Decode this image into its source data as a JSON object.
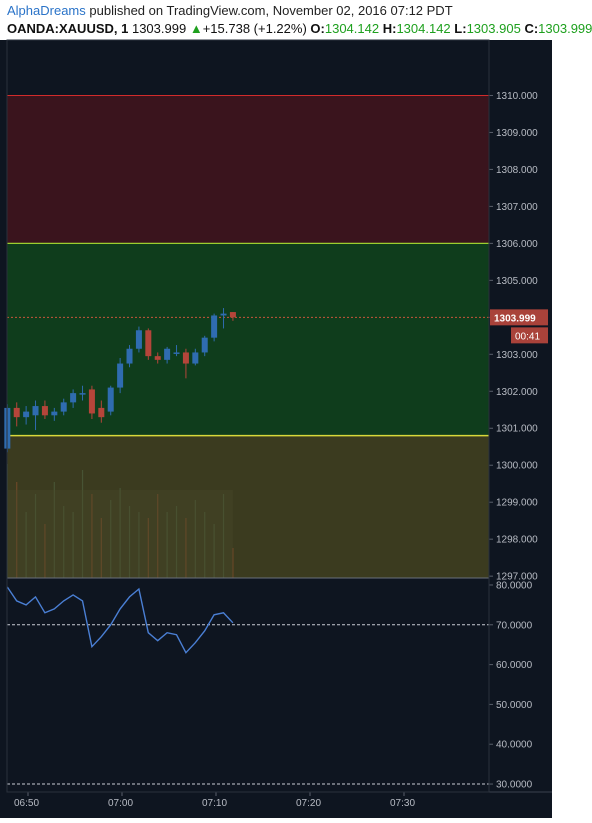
{
  "header": {
    "author": "AlphaDreams",
    "published_text": " published on TradingView.com, November 02, 2016 07:12 PDT",
    "symbol": "OANDA:XAUUSD, 1",
    "last": "1303.999",
    "change_arrow": "▲",
    "change": "+15.738 (+1.22%)",
    "o_label": "O:",
    "o_value": "1304.142",
    "h_label": "H:",
    "h_value": "1304.142",
    "l_label": "L:",
    "l_value": "1303.905",
    "c_label": "C:",
    "c_value": "1303.999"
  },
  "colors": {
    "background": "#0e1520",
    "upper_zone": "#3a141d",
    "middle_zone": "#0f3d1c",
    "lower_zone": "#3b3b1f",
    "red_line": "#d12b2b",
    "yellow_line": "#d8d83a",
    "candle_up": "#2f6cb0",
    "candle_down": "#b5453a",
    "price_label_bg": "#a9423a",
    "rsi_line": "#4a7fd4",
    "axis_text": "#b8bcc4"
  },
  "chart_data": {
    "type": "candlestick",
    "price_axis_ticks": [
      "1297.000",
      "1298.000",
      "1299.000",
      "1300.000",
      "1301.000",
      "1302.000",
      "1303.000",
      "1304.000",
      "1305.000",
      "1306.000",
      "1307.000",
      "1308.000",
      "1309.000",
      "1310.000"
    ],
    "price_ylim": [
      1296.95,
      1311.5
    ],
    "time_labels": [
      "06:50",
      "07:00",
      "07:10",
      "07:20",
      "07:30"
    ],
    "time_label_minutes": [
      0,
      10,
      20,
      30,
      40
    ],
    "last_price_label": "1303.999",
    "countdown_label": "00:41",
    "last_price": 1303.999,
    "zones": {
      "upper": [
        1306.0,
        1310.0
      ],
      "middle": [
        1300.8,
        1306.0
      ],
      "lower": [
        1297.0,
        1300.8
      ]
    },
    "candles": [
      {
        "t": -2.2,
        "o": 1300.45,
        "h": 1301.65,
        "l": 1300.35,
        "c": 1301.55
      },
      {
        "t": -1.2,
        "o": 1301.55,
        "h": 1301.7,
        "l": 1301.05,
        "c": 1301.3
      },
      {
        "t": -0.2,
        "o": 1301.3,
        "h": 1301.6,
        "l": 1301.1,
        "c": 1301.45
      },
      {
        "t": 0.8,
        "o": 1301.35,
        "h": 1301.75,
        "l": 1300.95,
        "c": 1301.6
      },
      {
        "t": 1.8,
        "o": 1301.6,
        "h": 1301.75,
        "l": 1301.25,
        "c": 1301.35
      },
      {
        "t": 2.8,
        "o": 1301.35,
        "h": 1301.55,
        "l": 1301.2,
        "c": 1301.45
      },
      {
        "t": 3.8,
        "o": 1301.45,
        "h": 1301.8,
        "l": 1301.35,
        "c": 1301.7
      },
      {
        "t": 4.8,
        "o": 1301.7,
        "h": 1302.05,
        "l": 1301.55,
        "c": 1301.95
      },
      {
        "t": 5.8,
        "o": 1301.95,
        "h": 1302.15,
        "l": 1301.75,
        "c": 1301.95
      },
      {
        "t": 6.8,
        "o": 1302.05,
        "h": 1302.15,
        "l": 1301.25,
        "c": 1301.4
      },
      {
        "t": 7.8,
        "o": 1301.55,
        "h": 1301.75,
        "l": 1301.15,
        "c": 1301.3
      },
      {
        "t": 8.8,
        "o": 1301.45,
        "h": 1302.15,
        "l": 1301.35,
        "c": 1302.1
      },
      {
        "t": 9.8,
        "o": 1302.1,
        "h": 1302.9,
        "l": 1301.95,
        "c": 1302.75
      },
      {
        "t": 10.8,
        "o": 1302.75,
        "h": 1303.25,
        "l": 1302.65,
        "c": 1303.15
      },
      {
        "t": 11.8,
        "o": 1303.15,
        "h": 1303.75,
        "l": 1303.05,
        "c": 1303.65
      },
      {
        "t": 12.8,
        "o": 1303.65,
        "h": 1303.7,
        "l": 1302.85,
        "c": 1302.95
      },
      {
        "t": 13.8,
        "o": 1302.95,
        "h": 1303.05,
        "l": 1302.75,
        "c": 1302.85
      },
      {
        "t": 14.8,
        "o": 1302.85,
        "h": 1303.2,
        "l": 1302.75,
        "c": 1303.15
      },
      {
        "t": 15.8,
        "o": 1303.05,
        "h": 1303.25,
        "l": 1302.95,
        "c": 1303.05
      },
      {
        "t": 16.8,
        "o": 1303.05,
        "h": 1303.15,
        "l": 1302.35,
        "c": 1302.75
      },
      {
        "t": 17.8,
        "o": 1302.75,
        "h": 1303.15,
        "l": 1302.7,
        "c": 1303.05
      },
      {
        "t": 18.8,
        "o": 1303.05,
        "h": 1303.5,
        "l": 1302.95,
        "c": 1303.45
      },
      {
        "t": 19.8,
        "o": 1303.45,
        "h": 1304.1,
        "l": 1303.35,
        "c": 1304.05
      },
      {
        "t": 20.8,
        "o": 1304.05,
        "h": 1304.25,
        "l": 1303.7,
        "c": 1304.1
      },
      {
        "t": 21.8,
        "o": 1304.142,
        "h": 1304.142,
        "l": 1303.905,
        "c": 1303.999
      }
    ],
    "volume_overlay": [
      0.95,
      0.8,
      0.55,
      0.7,
      0.45,
      0.8,
      0.6,
      0.55,
      0.9,
      0.7,
      0.5,
      0.65,
      0.75,
      0.6,
      0.55,
      0.5,
      0.7,
      0.55,
      0.6,
      0.5,
      0.65,
      0.55,
      0.45,
      0.7,
      0.25
    ],
    "rsi": {
      "axis_ticks": [
        "30.0000",
        "40.0000",
        "50.0000",
        "60.0000",
        "70.0000",
        "80.0000"
      ],
      "ylim": [
        28,
        81.5
      ],
      "overbought": 70,
      "oversold": 30,
      "values": [
        {
          "t": -2.2,
          "v": 79.5
        },
        {
          "t": -1.2,
          "v": 76
        },
        {
          "t": -0.2,
          "v": 75
        },
        {
          "t": 0.8,
          "v": 77
        },
        {
          "t": 1.8,
          "v": 73
        },
        {
          "t": 2.8,
          "v": 74
        },
        {
          "t": 3.8,
          "v": 76
        },
        {
          "t": 4.8,
          "v": 77.5
        },
        {
          "t": 5.8,
          "v": 76
        },
        {
          "t": 6.8,
          "v": 64.5
        },
        {
          "t": 7.8,
          "v": 67
        },
        {
          "t": 8.8,
          "v": 70
        },
        {
          "t": 9.8,
          "v": 74
        },
        {
          "t": 10.8,
          "v": 77
        },
        {
          "t": 11.8,
          "v": 79
        },
        {
          "t": 12.8,
          "v": 68
        },
        {
          "t": 13.8,
          "v": 66
        },
        {
          "t": 14.8,
          "v": 68
        },
        {
          "t": 15.8,
          "v": 67.5
        },
        {
          "t": 16.8,
          "v": 63
        },
        {
          "t": 17.8,
          "v": 65.5
        },
        {
          "t": 18.8,
          "v": 68.5
        },
        {
          "t": 19.8,
          "v": 72.5
        },
        {
          "t": 20.8,
          "v": 73
        },
        {
          "t": 21.8,
          "v": 70.5
        }
      ]
    }
  }
}
